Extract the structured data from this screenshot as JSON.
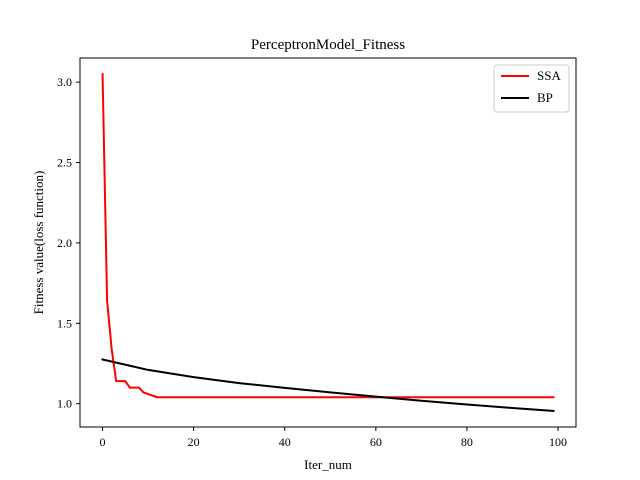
{
  "chart_data": {
    "type": "line",
    "title": "PerceptronModel_Fitness",
    "xlabel": "Iter_num",
    "ylabel": "Fitness value(loss function)",
    "xlim": [
      -4.95,
      103.95
    ],
    "ylim": [
      0.855,
      3.15
    ],
    "xticks": [
      0,
      20,
      40,
      60,
      80,
      100
    ],
    "yticks": [
      1.0,
      1.5,
      2.0,
      2.5,
      3.0
    ],
    "xtick_labels": [
      "0",
      "20",
      "40",
      "60",
      "80",
      "100"
    ],
    "ytick_labels": [
      "1.0",
      "1.5",
      "2.0",
      "2.5",
      "3.0"
    ],
    "grid": false,
    "legend_position": "top-right",
    "series": [
      {
        "name": "SSA",
        "color": "#ff0000",
        "x": [
          0,
          1,
          2,
          3,
          4,
          5,
          6,
          7,
          8,
          9,
          10,
          11,
          12,
          99
        ],
        "y": [
          3.05,
          1.64,
          1.34,
          1.14,
          1.14,
          1.14,
          1.1,
          1.1,
          1.1,
          1.07,
          1.06,
          1.05,
          1.04,
          1.04
        ]
      },
      {
        "name": "BP",
        "color": "#000000",
        "x": [
          0,
          10,
          20,
          30,
          40,
          50,
          60,
          70,
          80,
          90,
          99
        ],
        "y": [
          1.275,
          1.21,
          1.165,
          1.128,
          1.098,
          1.07,
          1.044,
          1.018,
          0.995,
          0.973,
          0.955
        ]
      }
    ]
  }
}
